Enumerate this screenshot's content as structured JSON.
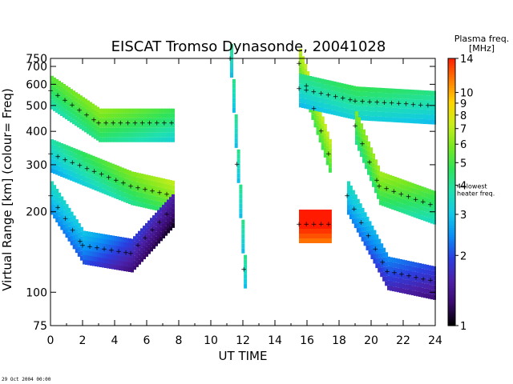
{
  "chart_data": {
    "type": "heatmap",
    "title": "EISCAT Tromso Dynasonde,  20041028",
    "xlabel": "UT TIME",
    "ylabel_parts": [
      "Virtual Range ",
      "[km]",
      "   (colour= Freq)"
    ],
    "xlim": [
      0,
      24
    ],
    "ylim": [
      75,
      750
    ],
    "y_scale": "log",
    "x_ticks": [
      0,
      2,
      4,
      6,
      8,
      10,
      12,
      14,
      16,
      18,
      20,
      22,
      24
    ],
    "y_ticks": [
      75,
      100,
      200,
      300,
      400,
      500,
      600,
      700,
      750
    ],
    "colorbar": {
      "title_lines": [
        "Plasma freq.",
        "[MHz]"
      ],
      "range": [
        1,
        14
      ],
      "scale": "log",
      "ticks": [
        1,
        2,
        3,
        4,
        5,
        6,
        7,
        8,
        9,
        10,
        14
      ],
      "annotation_lines": [
        "4=lowest",
        "heater freq."
      ],
      "annotation_value": 4,
      "colors": [
        "#000000",
        "#3a0a6e",
        "#4b20a8",
        "#2a3ee0",
        "#0a8ef5",
        "#11c9e6",
        "#1fe0b0",
        "#2ee35a",
        "#78e820",
        "#c8ee1a",
        "#ffd400",
        "#ff7a00",
        "#ff1a00"
      ]
    },
    "series": [
      {
        "x": [
          0,
          3,
          7.7
        ],
        "range_km": [
          570,
          430,
          430
        ],
        "mhz": [
          4.5,
          5.2,
          4.0
        ]
      },
      {
        "x": [
          0,
          5,
          7.7
        ],
        "range_km": [
          330,
          250,
          230
        ],
        "mhz": [
          3.2,
          5.0,
          6.0
        ]
      },
      {
        "x": [
          0,
          2,
          5,
          7.7
        ],
        "range_km": [
          230,
          150,
          140,
          210
        ],
        "mhz": [
          3.0,
          2.5,
          1.6,
          1.3
        ]
      },
      {
        "x": [
          11.2,
          12.2
        ],
        "range_km": [
          750,
          90
        ],
        "mhz": [
          3.5,
          3.5
        ]
      },
      {
        "x": [
          15.5,
          17.5
        ],
        "range_km": [
          720,
          310
        ],
        "mhz": [
          6.0,
          6.0
        ]
      },
      {
        "x": [
          15.5,
          17.5
        ],
        "range_km": [
          180,
          180
        ],
        "mhz": [
          14,
          14
        ]
      },
      {
        "x": [
          15.5,
          19,
          24
        ],
        "range_km": [
          580,
          520,
          500
        ],
        "mhz": [
          3.5,
          4.0,
          3.5
        ]
      },
      {
        "x": [
          19,
          20.5,
          24
        ],
        "range_km": [
          420,
          250,
          210
        ],
        "mhz": [
          5.0,
          5.5,
          4.2
        ]
      },
      {
        "x": [
          18.5,
          21,
          24
        ],
        "range_km": [
          230,
          120,
          110
        ],
        "mhz": [
          3.0,
          2.0,
          1.6
        ]
      }
    ],
    "grid": false,
    "legend": "colorbar-right"
  },
  "footer": "29 Oct 2004 00:00"
}
